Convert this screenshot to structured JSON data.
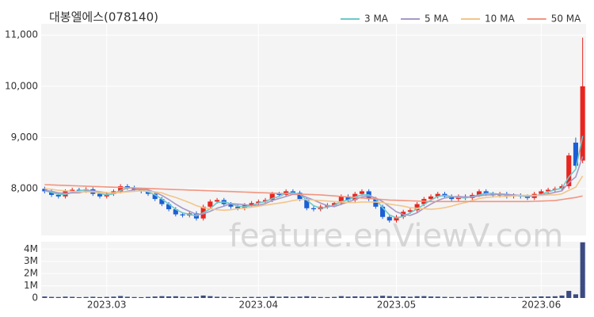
{
  "chart_data": {
    "type": "candlestick",
    "title": "대봉엘에스(078140)",
    "watermark": "feature.enViewV.com",
    "categories": [
      null,
      null,
      null,
      null,
      null,
      null,
      null,
      null,
      null,
      "2023.03",
      null,
      null,
      null,
      null,
      null,
      null,
      null,
      null,
      null,
      null,
      null,
      null,
      null,
      null,
      null,
      null,
      null,
      null,
      null,
      null,
      null,
      "2023.04",
      null,
      null,
      null,
      null,
      null,
      null,
      null,
      null,
      null,
      null,
      null,
      null,
      null,
      null,
      null,
      null,
      null,
      null,
      null,
      "2023.05",
      null,
      null,
      null,
      null,
      null,
      null,
      null,
      null,
      null,
      null,
      null,
      null,
      null,
      null,
      null,
      null,
      null,
      null,
      null,
      null,
      "2023.06",
      null,
      null,
      null,
      null,
      null,
      null
    ],
    "open": [
      8000,
      7950,
      7880,
      7850,
      7950,
      7980,
      7960,
      7990,
      7900,
      7850,
      7900,
      7950,
      8050,
      8020,
      7980,
      7950,
      7900,
      7800,
      7700,
      7600,
      7500,
      7480,
      7520,
      7420,
      7650,
      7750,
      7780,
      7700,
      7650,
      7620,
      7680,
      7720,
      7750,
      7780,
      7900,
      7880,
      7950,
      7920,
      7800,
      7620,
      7600,
      7650,
      7680,
      7720,
      7850,
      7780,
      7900,
      7950,
      7800,
      7650,
      7450,
      7380,
      7450,
      7550,
      7580,
      7700,
      7800,
      7850,
      7900,
      7850,
      7800,
      7850,
      7820,
      7880,
      7950,
      7900,
      7870,
      7900,
      7850,
      7870,
      7850,
      7820,
      7900,
      7950,
      7980,
      8000,
      8050,
      8900,
      8550
    ],
    "high": [
      8040,
      7990,
      7920,
      7990,
      8020,
      8020,
      8030,
      8030,
      7940,
      7940,
      7990,
      8090,
      8090,
      8060,
      8020,
      7990,
      7940,
      7840,
      7740,
      7640,
      7540,
      7560,
      7560,
      7690,
      7790,
      7820,
      7820,
      7740,
      7690,
      7720,
      7760,
      7790,
      7820,
      7940,
      7940,
      7990,
      7990,
      7960,
      7840,
      7660,
      7690,
      7720,
      7760,
      7890,
      7890,
      7940,
      7990,
      7990,
      7840,
      7690,
      7490,
      7490,
      7590,
      7620,
      7740,
      7840,
      7890,
      7940,
      7940,
      7890,
      7890,
      7890,
      7920,
      7990,
      7990,
      7940,
      7940,
      7940,
      7910,
      7910,
      7890,
      7940,
      7990,
      8020,
      8040,
      8090,
      8700,
      9000,
      10950
    ],
    "low": [
      7910,
      7840,
      7810,
      7810,
      7910,
      7920,
      7920,
      7860,
      7810,
      7810,
      7860,
      7910,
      7980,
      7940,
      7910,
      7860,
      7760,
      7660,
      7560,
      7460,
      7440,
      7440,
      7380,
      7380,
      7610,
      7710,
      7660,
      7610,
      7580,
      7580,
      7640,
      7680,
      7710,
      7740,
      7840,
      7840,
      7880,
      7760,
      7580,
      7560,
      7560,
      7610,
      7640,
      7680,
      7740,
      7740,
      7860,
      7760,
      7610,
      7410,
      7340,
      7340,
      7410,
      7510,
      7540,
      7660,
      7760,
      7810,
      7810,
      7760,
      7760,
      7780,
      7780,
      7840,
      7860,
      7830,
      7830,
      7810,
      7810,
      7810,
      7780,
      7780,
      7860,
      7910,
      7940,
      7960,
      8000,
      8400,
      8500
    ],
    "close": [
      7950,
      7880,
      7850,
      7950,
      7980,
      7960,
      7990,
      7900,
      7850,
      7900,
      7950,
      8050,
      8020,
      7980,
      7950,
      7900,
      7800,
      7700,
      7600,
      7500,
      7480,
      7520,
      7420,
      7650,
      7750,
      7780,
      7700,
      7650,
      7620,
      7680,
      7720,
      7750,
      7780,
      7900,
      7880,
      7950,
      7920,
      7800,
      7620,
      7600,
      7650,
      7680,
      7720,
      7850,
      7780,
      7900,
      7950,
      7800,
      7650,
      7450,
      7380,
      7450,
      7550,
      7580,
      7700,
      7800,
      7850,
      7900,
      7850,
      7800,
      7850,
      7820,
      7880,
      7950,
      7900,
      7870,
      7900,
      7850,
      7870,
      7850,
      7820,
      7900,
      7950,
      7980,
      8000,
      8050,
      8650,
      8450,
      10000
    ],
    "volume": [
      120000,
      90000,
      80000,
      110000,
      95000,
      70000,
      85000,
      100000,
      75000,
      90000,
      110000,
      160000,
      100000,
      80000,
      70000,
      90000,
      120000,
      150000,
      130000,
      140000,
      100000,
      90000,
      120000,
      200000,
      150000,
      100000,
      90000,
      80000,
      70000,
      80000,
      90000,
      85000,
      90000,
      140000,
      100000,
      120000,
      90000,
      110000,
      140000,
      100000,
      80000,
      75000,
      90000,
      150000,
      110000,
      130000,
      120000,
      110000,
      140000,
      180000,
      150000,
      120000,
      130000,
      100000,
      140000,
      150000,
      120000,
      110000,
      90000,
      80000,
      90000,
      80000,
      100000,
      120000,
      90000,
      80000,
      85000,
      80000,
      75000,
      80000,
      90000,
      110000,
      130000,
      120000,
      140000,
      200000,
      580000,
      300000,
      4550000
    ],
    "up_color": "#e8251f",
    "down_color": "#1a5fd6",
    "volume_color": "#3b4a80",
    "series": [
      {
        "name": "3 MA",
        "color": "#6cc9c9",
        "values": [
          7960,
          7930,
          7890,
          7890,
          7930,
          7960,
          7980,
          7950,
          7910,
          7880,
          7900,
          7970,
          8010,
          8020,
          7980,
          7940,
          7880,
          7800,
          7700,
          7600,
          7530,
          7500,
          7470,
          7530,
          7610,
          7730,
          7740,
          7710,
          7660,
          7650,
          7670,
          7720,
          7750,
          7810,
          7850,
          7910,
          7920,
          7890,
          7780,
          7670,
          7620,
          7640,
          7680,
          7750,
          7780,
          7840,
          7880,
          7880,
          7800,
          7630,
          7490,
          7430,
          7460,
          7530,
          7610,
          7690,
          7780,
          7850,
          7870,
          7850,
          7830,
          7820,
          7850,
          7880,
          7910,
          7910,
          7890,
          7870,
          7870,
          7860,
          7850,
          7860,
          7890,
          7940,
          7980,
          8010,
          8230,
          8380,
          9030
        ]
      },
      {
        "name": "5 MA",
        "color": "#a898c8",
        "values": [
          7970,
          7950,
          7920,
          7910,
          7920,
          7920,
          7950,
          7960,
          7940,
          7920,
          7920,
          7930,
          7950,
          7980,
          7990,
          7980,
          7930,
          7870,
          7790,
          7700,
          7620,
          7560,
          7500,
          7510,
          7560,
          7620,
          7660,
          7710,
          7700,
          7690,
          7670,
          7680,
          7710,
          7770,
          7810,
          7850,
          7890,
          7890,
          7830,
          7780,
          7720,
          7670,
          7650,
          7700,
          7740,
          7790,
          7840,
          7860,
          7820,
          7750,
          7650,
          7550,
          7500,
          7480,
          7530,
          7620,
          7700,
          7770,
          7820,
          7840,
          7850,
          7840,
          7840,
          7860,
          7880,
          7880,
          7900,
          7890,
          7880,
          7870,
          7860,
          7860,
          7880,
          7900,
          7930,
          7960,
          8120,
          8230,
          8630
        ]
      },
      {
        "name": "10 MA",
        "color": "#f3c58a",
        "values": [
          8000,
          7990,
          7970,
          7960,
          7950,
          7940,
          7940,
          7940,
          7930,
          7920,
          7920,
          7930,
          7940,
          7950,
          7960,
          7950,
          7940,
          7920,
          7870,
          7830,
          7780,
          7730,
          7670,
          7630,
          7610,
          7590,
          7580,
          7590,
          7610,
          7620,
          7640,
          7660,
          7680,
          7700,
          7720,
          7740,
          7770,
          7790,
          7790,
          7780,
          7770,
          7760,
          7750,
          7740,
          7730,
          7730,
          7740,
          7740,
          7740,
          7730,
          7700,
          7680,
          7660,
          7630,
          7620,
          7610,
          7600,
          7610,
          7630,
          7660,
          7700,
          7730,
          7770,
          7810,
          7830,
          7840,
          7850,
          7850,
          7860,
          7870,
          7870,
          7870,
          7870,
          7880,
          7880,
          7900,
          7970,
          8030,
          8250
        ]
      },
      {
        "name": "50 MA",
        "color": "#f29580",
        "values": [
          8080,
          8075,
          8070,
          8065,
          8060,
          8055,
          8050,
          8045,
          8040,
          8035,
          8030,
          8025,
          8020,
          8015,
          8010,
          8005,
          8000,
          7995,
          7990,
          7985,
          7980,
          7975,
          7970,
          7965,
          7960,
          7955,
          7950,
          7945,
          7940,
          7935,
          7930,
          7925,
          7920,
          7915,
          7910,
          7905,
          7900,
          7895,
          7890,
          7885,
          7880,
          7870,
          7860,
          7850,
          7840,
          7830,
          7820,
          7810,
          7800,
          7790,
          7780,
          7775,
          7770,
          7765,
          7760,
          7755,
          7750,
          7750,
          7750,
          7750,
          7750,
          7750,
          7750,
          7750,
          7750,
          7750,
          7750,
          7750,
          7750,
          7750,
          7750,
          7755,
          7760,
          7765,
          7770,
          7790,
          7810,
          7830,
          7860
        ]
      }
    ],
    "ylim": [
      7090,
      11220
    ],
    "yticks": [
      {
        "value": 8000,
        "label": "8,000"
      },
      {
        "value": 9000,
        "label": "9,000"
      },
      {
        "value": 10000,
        "label": "10,000"
      },
      {
        "value": 11000,
        "label": "11,000"
      }
    ],
    "volume_ylim": [
      0,
      4600000
    ],
    "volume_ticks": [
      0,
      {
        "value": 1000000,
        "label": "1M"
      },
      {
        "value": 2000000,
        "label": "2M"
      },
      {
        "value": 3000000,
        "label": "3M"
      },
      {
        "value": 4000000,
        "label": "4M"
      }
    ],
    "grid": true,
    "legend": "top-right"
  }
}
